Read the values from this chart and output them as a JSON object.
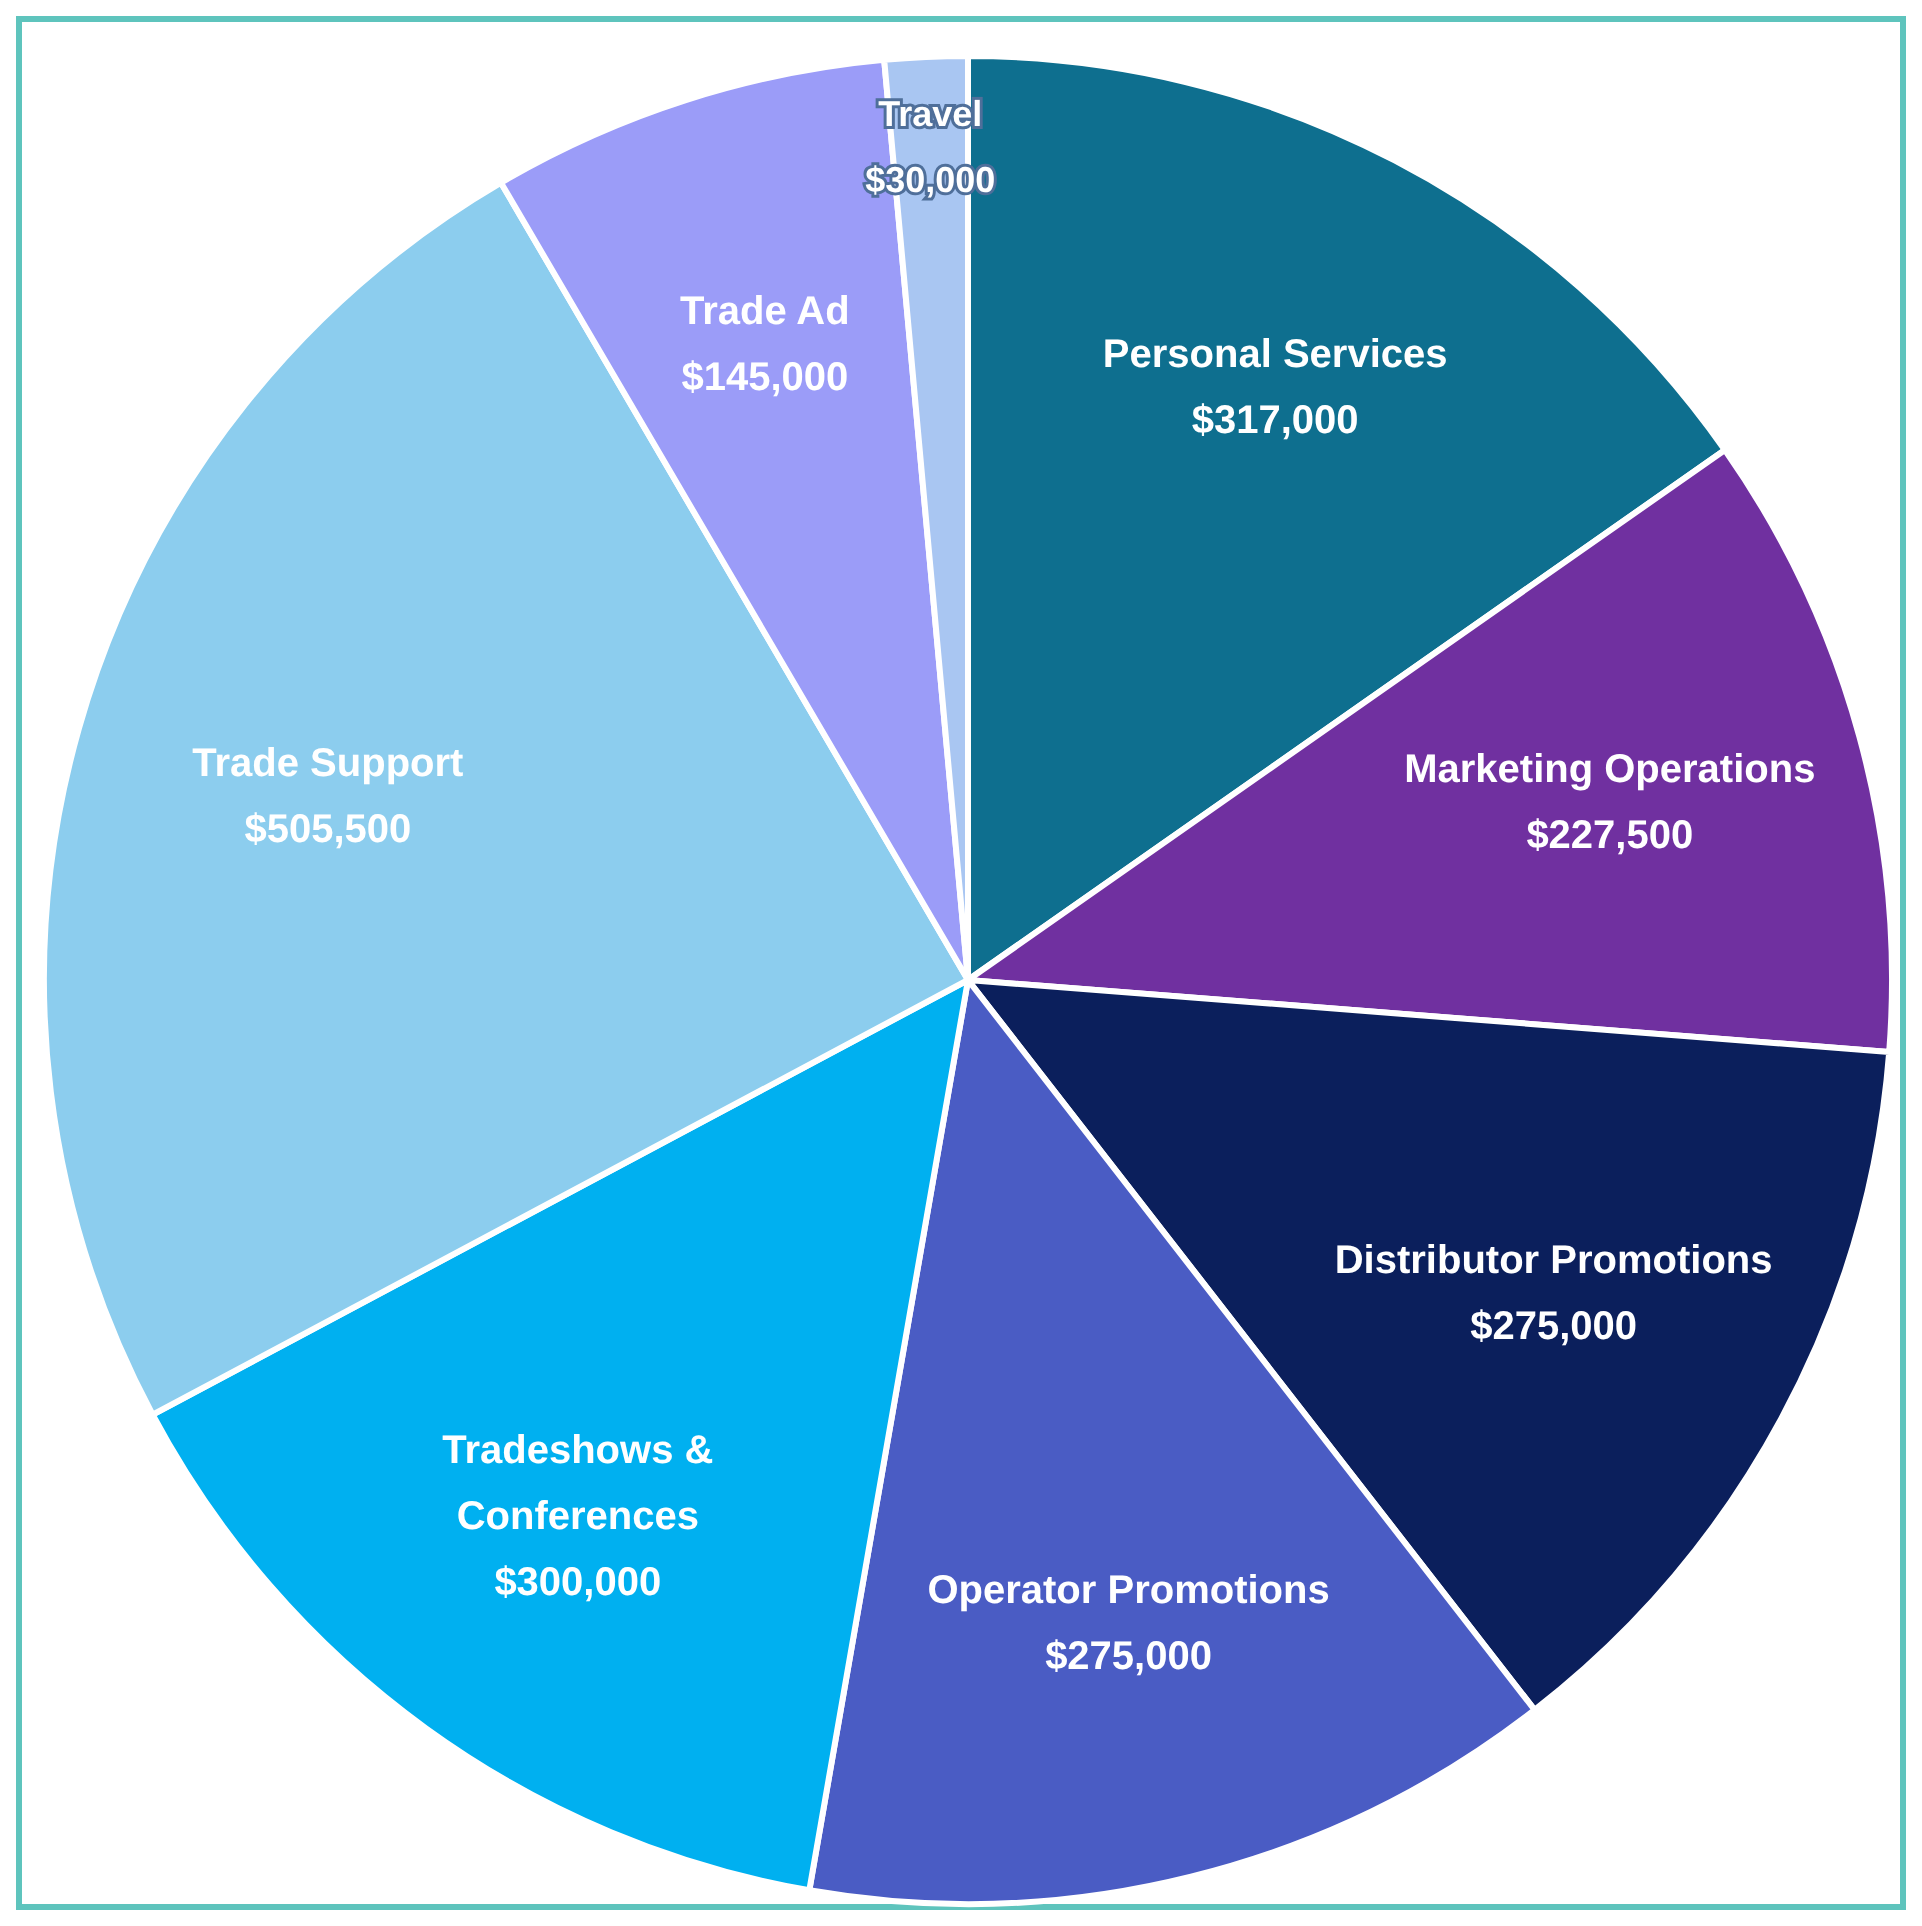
{
  "chart_data": {
    "type": "pie",
    "categories": [
      "Personal Services",
      "Marketing Operations",
      "Distributor Promotions",
      "Operator Promotions",
      "Tradeshows & Conferences",
      "Trade Support",
      "Trade Ad",
      "Travel"
    ],
    "values": [
      317000,
      227500,
      275000,
      275000,
      300000,
      505500,
      145000,
      30000
    ],
    "colors": [
      "#0e6f8f",
      "#7030a0",
      "#0b1f5c",
      "#4a5cc4",
      "#00b0f0",
      "#8ccdee",
      "#9b9cf8",
      "#a9c6f2"
    ],
    "value_labels": [
      "$317,000",
      "$227,500",
      "$275,000",
      "$275,000",
      "$300,000",
      "$505,500",
      "$145,000",
      "$30,000"
    ]
  }
}
